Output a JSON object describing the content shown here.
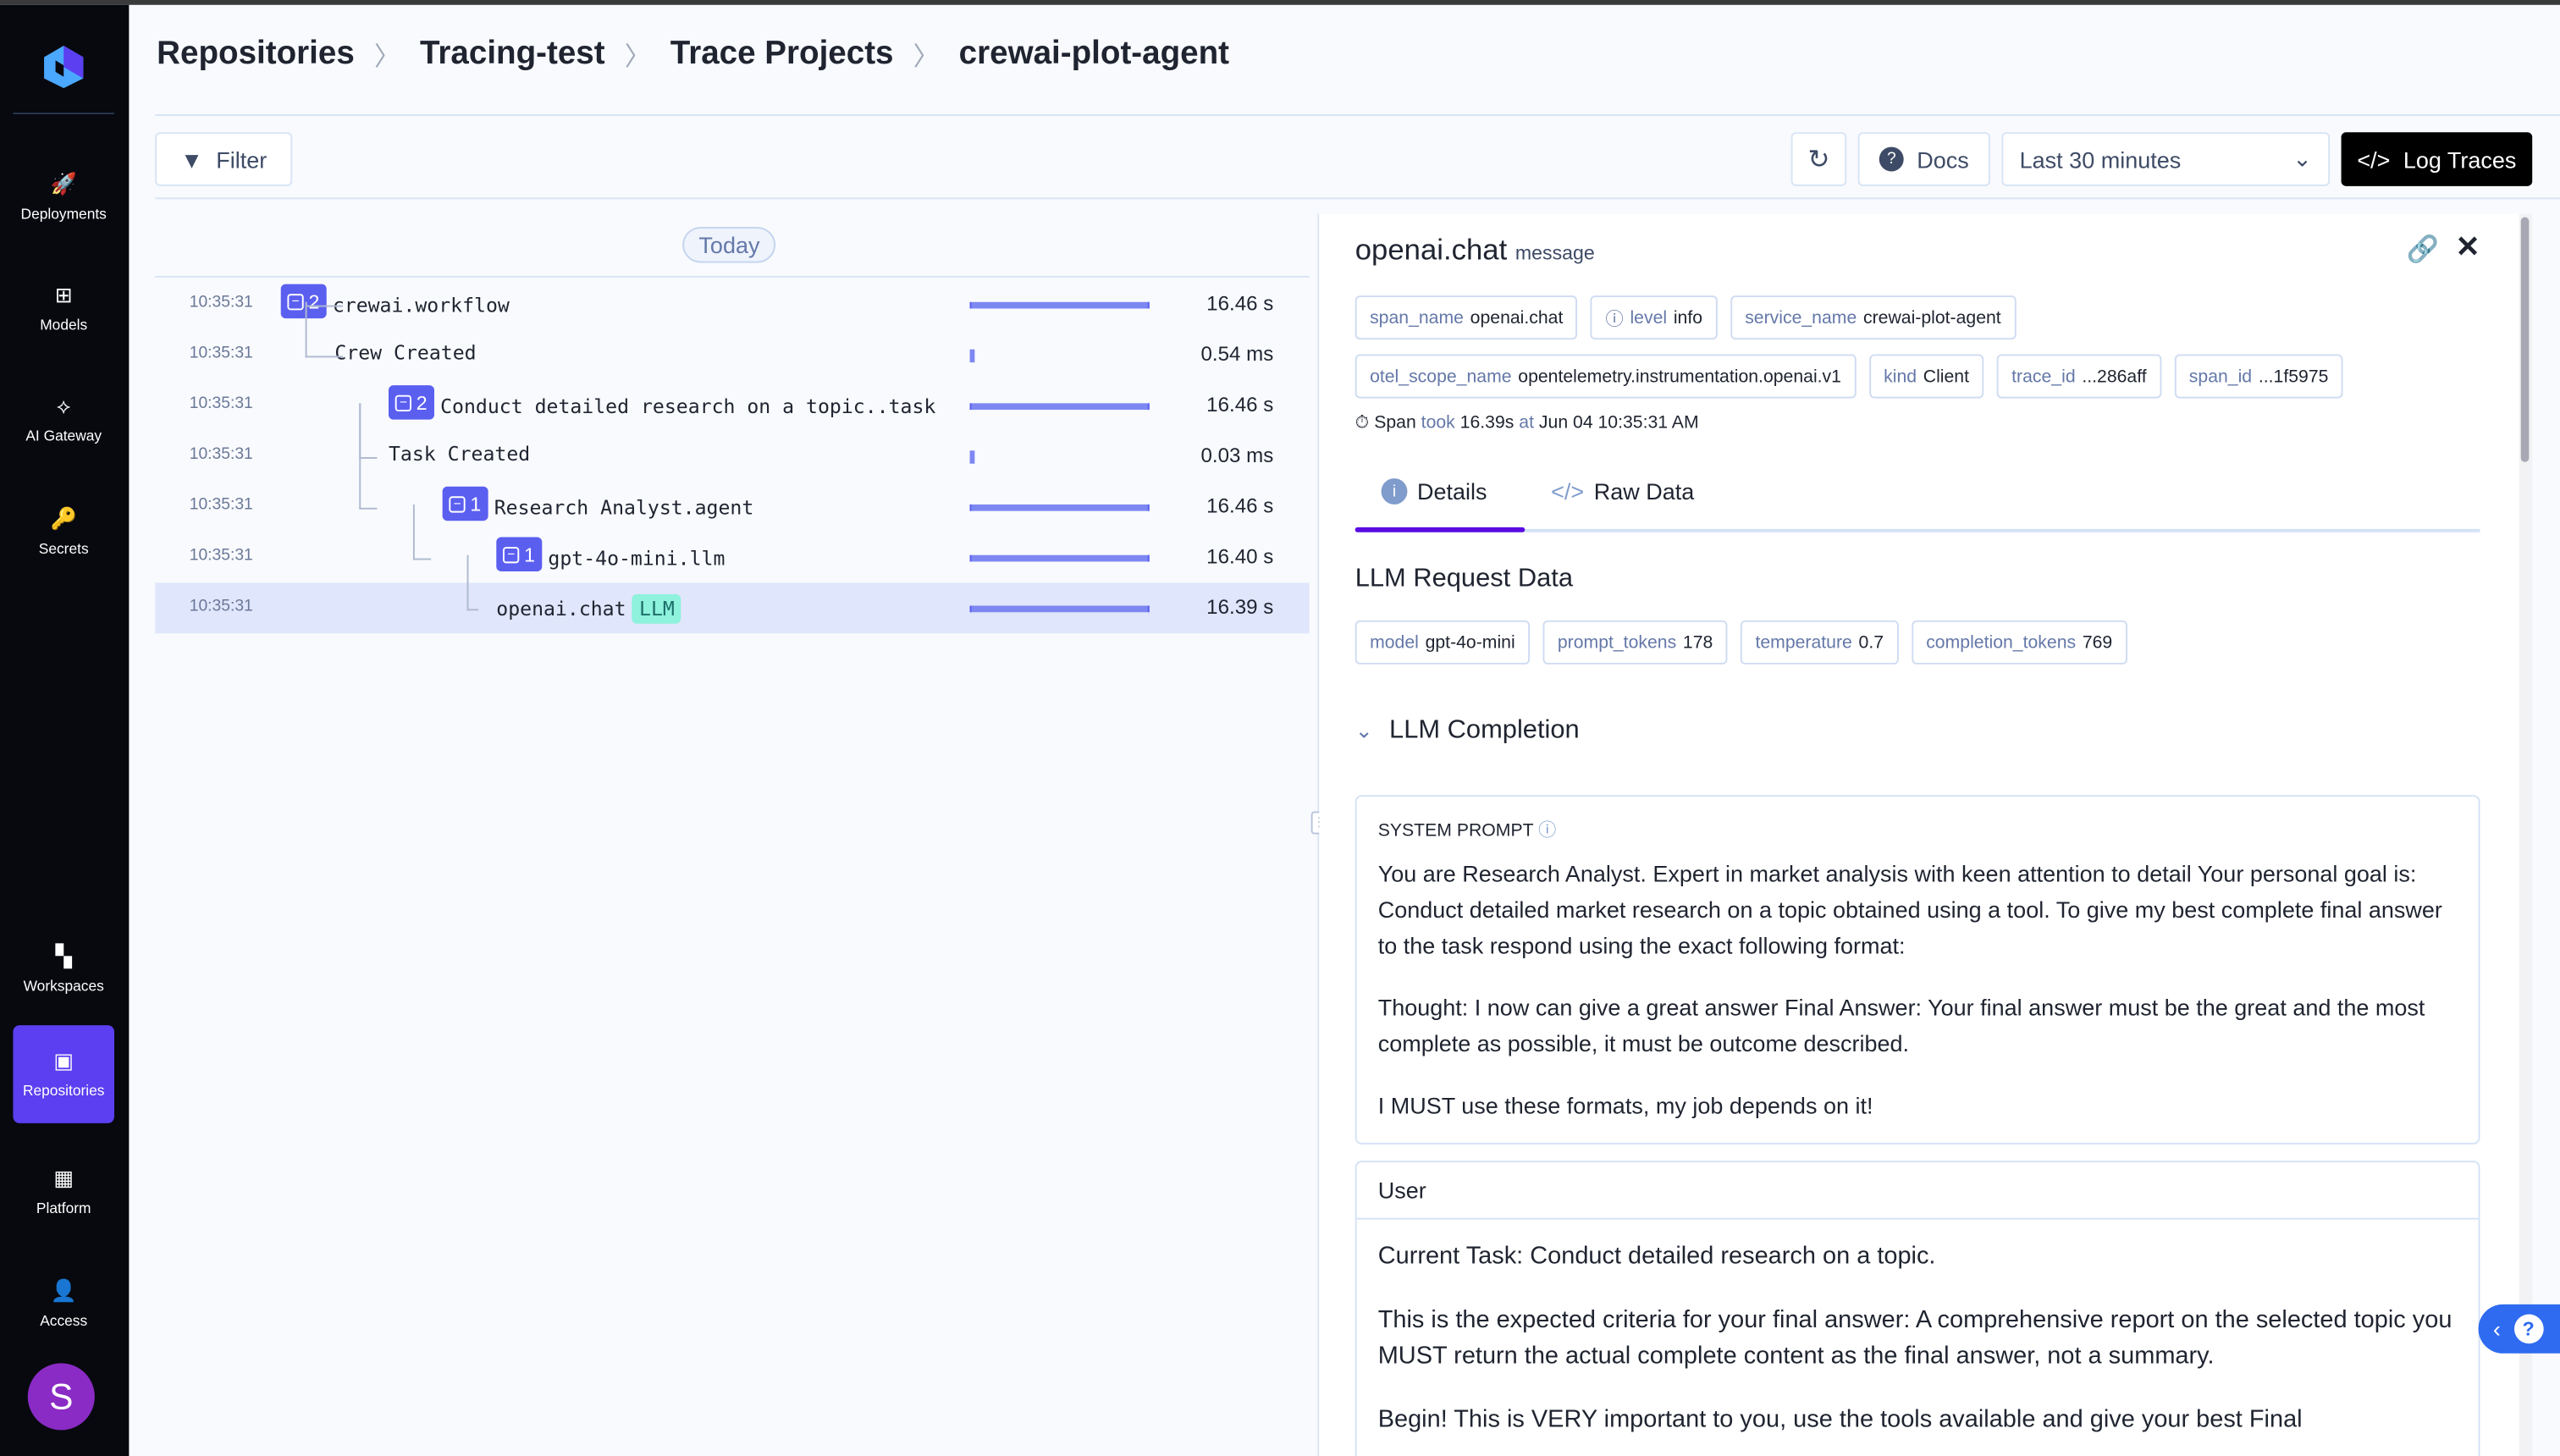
{
  "sidebar": {
    "items": [
      {
        "label": "Deployments",
        "icon": "rocket-icon",
        "glyph": "🚀"
      },
      {
        "label": "Models",
        "icon": "grid-icon",
        "glyph": "⊞"
      },
      {
        "label": "AI Gateway",
        "icon": "network-icon",
        "glyph": "⟡"
      },
      {
        "label": "Secrets",
        "icon": "key-icon",
        "glyph": "🔑"
      },
      {
        "label": "Workspaces",
        "icon": "workspaces-icon",
        "glyph": "▚"
      },
      {
        "label": "Repositories",
        "icon": "repository-icon",
        "glyph": "▣"
      },
      {
        "label": "Platform",
        "icon": "platform-icon",
        "glyph": "▦"
      },
      {
        "label": "Access",
        "icon": "user-access-icon",
        "glyph": "👤"
      }
    ],
    "avatar": "S"
  },
  "breadcrumb": [
    "Repositories",
    "Tracing-test",
    "Trace Projects",
    "crewai-plot-agent"
  ],
  "toolbar": {
    "filter": "Filter",
    "docs": "Docs",
    "time_range": "Last 30 minutes",
    "log_traces": "Log Traces"
  },
  "traces": {
    "date_label": "Today",
    "rows": [
      {
        "time": "10:35:31",
        "name": "crewai.workflow",
        "count": "2",
        "duration": "16.46 s",
        "fraction": 1.0
      },
      {
        "time": "10:35:31",
        "name": "Crew Created",
        "duration": "0.54 ms",
        "fraction": 0
      },
      {
        "time": "10:35:31",
        "name": "Conduct detailed research on a topic..task",
        "count": "2",
        "duration": "16.46 s",
        "fraction": 1.0
      },
      {
        "time": "10:35:31",
        "name": "Task Created",
        "duration": "0.03 ms",
        "fraction": 0
      },
      {
        "time": "10:35:31",
        "name": "Research Analyst.agent",
        "count": "1",
        "duration": "16.46 s",
        "fraction": 1.0
      },
      {
        "time": "10:35:31",
        "name": "gpt-4o-mini.llm",
        "count": "1",
        "duration": "16.40 s",
        "fraction": 1.0
      },
      {
        "time": "10:35:31",
        "name": "openai.chat",
        "badge": "LLM",
        "duration": "16.39 s",
        "fraction": 1.0,
        "selected": true
      }
    ]
  },
  "detail": {
    "title": "openai.chat",
    "subtitle": "message",
    "chips_row1": [
      {
        "k": "span_name",
        "v": "openai.chat"
      },
      {
        "k": "level",
        "v": "info"
      },
      {
        "k": "service_name",
        "v": "crewai-plot-agent"
      }
    ],
    "chips_row2": [
      {
        "k": "otel_scope_name",
        "v": "opentelemetry.instrumentation.openai.v1"
      },
      {
        "k": "kind",
        "v": "Client"
      },
      {
        "k": "trace_id",
        "v": "...286aff"
      },
      {
        "k": "span_id",
        "v": "...1f5975"
      }
    ],
    "span_info": {
      "a": "Span",
      "b": "took",
      "c": "16.39s",
      "d": "at",
      "e": "Jun 04 10:35:31 AM"
    },
    "tabs": [
      "Details",
      "Raw Data"
    ],
    "llm_request_title": "LLM Request Data",
    "request_chips": [
      {
        "k": "model",
        "v": "gpt-4o-mini"
      },
      {
        "k": "prompt_tokens",
        "v": "178"
      },
      {
        "k": "temperature",
        "v": "0.7"
      },
      {
        "k": "completion_tokens",
        "v": "769"
      }
    ],
    "completion_title": "LLM Completion",
    "system_prompt_label": "SYSTEM PROMPT",
    "system_prompt": [
      "You are Research Analyst. Expert in market analysis with keen attention to detail Your personal goal is: Conduct detailed market research on a topic obtained using a tool. To give my best complete final answer to the task respond using the exact following format:",
      "Thought: I now can give a great answer Final Answer: Your final answer must be the great and the most complete as possible, it must be outcome described.",
      "I MUST use these formats, my job depends on it!"
    ],
    "user_label": "User",
    "user": [
      "Current Task: Conduct detailed research on a topic.",
      "This is the expected criteria for your final answer: A comprehensive report on the selected topic you MUST return the actual complete content as the final answer, not a summary.",
      "Begin! This is VERY important to you, use the tools available and give your best Final"
    ]
  }
}
